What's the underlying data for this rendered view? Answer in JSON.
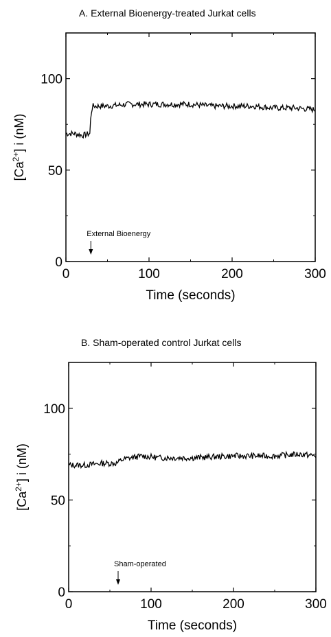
{
  "chart_data": [
    {
      "type": "line",
      "title": "A.  External Bioenergy-treated Jurkat cells",
      "xlabel": "Time  (seconds)",
      "ylabel": "[Ca2+] i  (nM)",
      "xlim": [
        0,
        300
      ],
      "ylim": [
        0,
        125
      ],
      "x_ticks": [
        0,
        100,
        200,
        300
      ],
      "y_ticks": [
        0,
        50,
        100
      ],
      "annotation": {
        "text": "External Bioenergy",
        "x": 30
      },
      "series": [
        {
          "x": [
            0,
            10,
            20,
            29,
            30,
            32,
            50,
            75,
            100,
            125,
            150,
            175,
            200,
            225,
            250,
            275,
            300
          ],
          "y": [
            70,
            70,
            69,
            70,
            80,
            85,
            85,
            86,
            86,
            86,
            86,
            85,
            85,
            85,
            84,
            84,
            83
          ]
        }
      ]
    },
    {
      "type": "line",
      "title": "B.  Sham-operated control Jurkat cells",
      "xlabel": "Time  (seconds)",
      "ylabel": "[Ca2+] i  (nM)",
      "xlim": [
        0,
        300
      ],
      "ylim": [
        0,
        125
      ],
      "x_ticks": [
        0,
        100,
        200,
        300
      ],
      "y_ticks": [
        0,
        50,
        100
      ],
      "annotation": {
        "text": "Sham-operated",
        "x": 60
      },
      "series": [
        {
          "x": [
            0,
            20,
            40,
            58,
            65,
            75,
            90,
            110,
            150,
            200,
            250,
            280,
            300
          ],
          "y": [
            69,
            69,
            70,
            70,
            72,
            73,
            74,
            73,
            73,
            74,
            74,
            75,
            74
          ]
        }
      ]
    }
  ]
}
